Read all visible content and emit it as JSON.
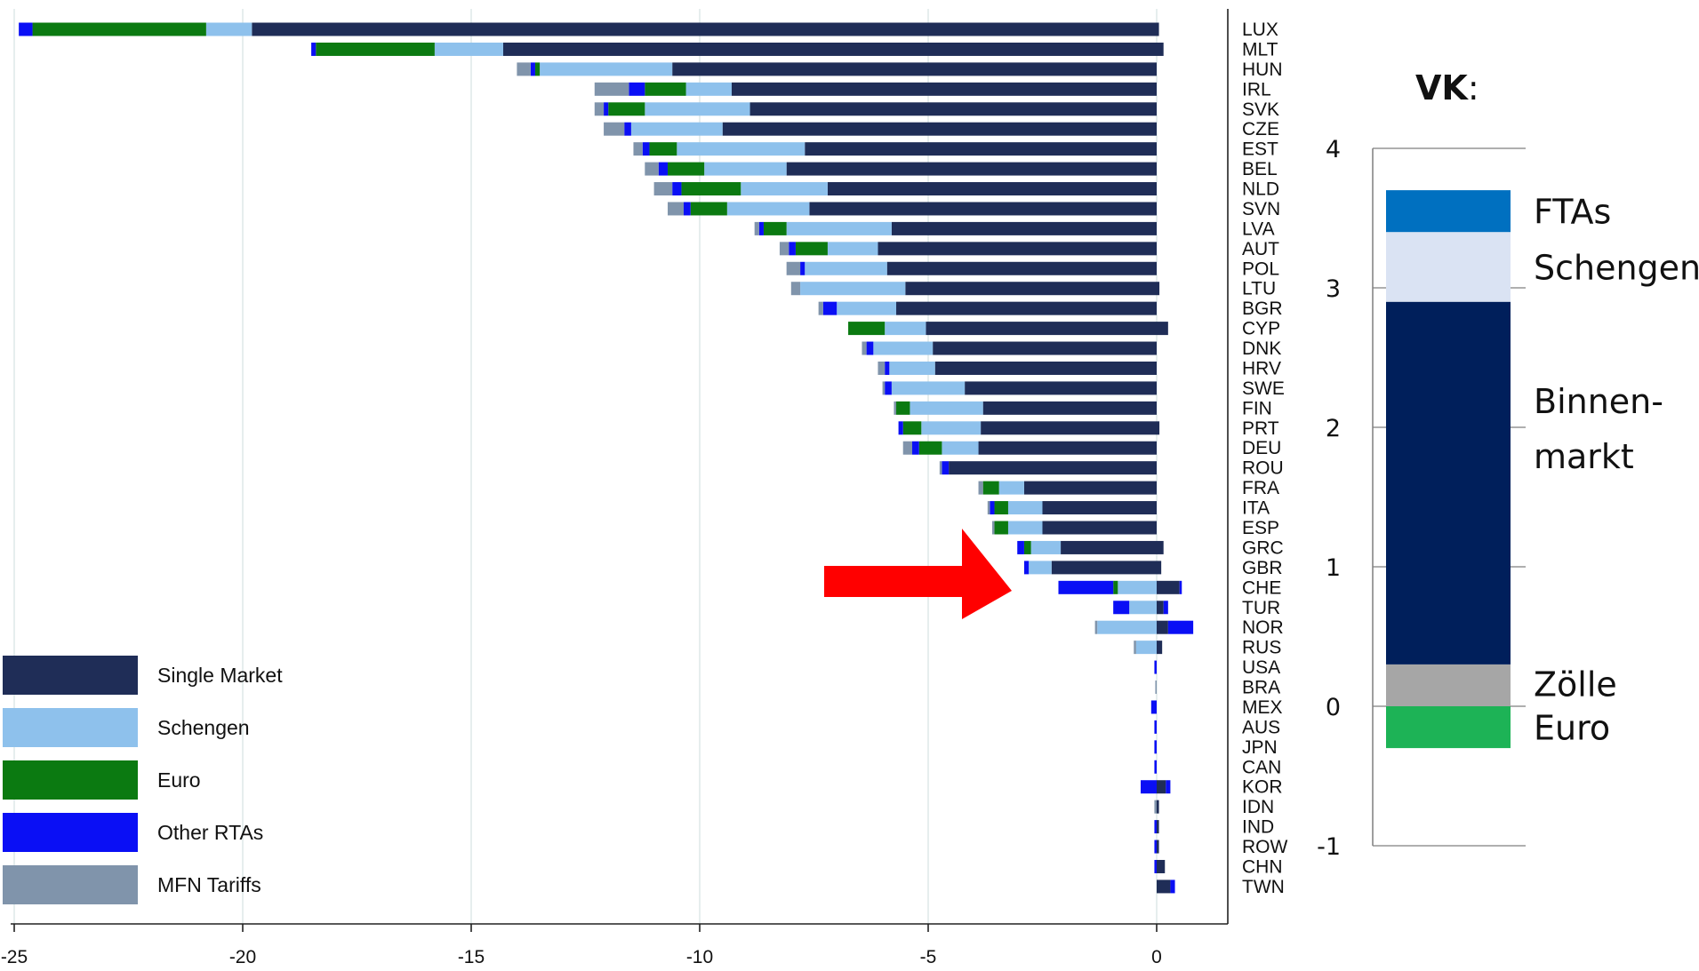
{
  "chart_data": [
    {
      "type": "bar",
      "orientation": "horizontal",
      "stacked": true,
      "xlim": [
        -25,
        0.8
      ],
      "xticks": [
        -25,
        -20,
        -15,
        -10,
        -5,
        0
      ],
      "grid": true,
      "legend_position": "bottom-left",
      "legend": [
        "Single Market",
        "Schengen",
        "Euro",
        "Other RTAs",
        "MFN Tariffs"
      ],
      "colors": {
        "Single Market": "#1f2d57",
        "Schengen": "#8ec1ec",
        "Euro": "#0b7a11",
        "Other RTAs": "#0a0ff5",
        "MFN Tariffs": "#8094ab"
      },
      "stack_order": [
        "Single Market",
        "Schengen",
        "Euro",
        "Other RTAs",
        "MFN Tariffs"
      ],
      "annotation": "red arrow pointing at GBR",
      "categories": [
        {
          "code": "LUX",
          "values": [
            -19.8,
            -1.0,
            -3.8,
            -0.3,
            0.0
          ],
          "pos": [
            0.05
          ]
        },
        {
          "code": "MLT",
          "values": [
            -14.3,
            -1.5,
            -2.6,
            -0.1,
            0.0
          ],
          "pos": [
            0.15
          ]
        },
        {
          "code": "HUN",
          "values": [
            -10.6,
            -2.9,
            -0.1,
            -0.1,
            -0.3
          ],
          "pos": []
        },
        {
          "code": "IRL",
          "values": [
            -9.3,
            -1.0,
            -0.9,
            -0.35,
            -0.75
          ],
          "pos": []
        },
        {
          "code": "SVK",
          "values": [
            -8.9,
            -2.3,
            -0.8,
            -0.1,
            -0.2
          ],
          "pos": []
        },
        {
          "code": "CZE",
          "values": [
            -9.5,
            -2.0,
            0.0,
            -0.15,
            -0.45
          ],
          "pos": []
        },
        {
          "code": "EST",
          "values": [
            -7.7,
            -2.8,
            -0.6,
            -0.15,
            -0.2
          ],
          "pos": []
        },
        {
          "code": "BEL",
          "values": [
            -8.1,
            -1.8,
            -0.8,
            -0.2,
            -0.3
          ],
          "pos": []
        },
        {
          "code": "NLD",
          "values": [
            -7.2,
            -1.9,
            -1.3,
            -0.2,
            -0.4
          ],
          "pos": []
        },
        {
          "code": "SVN",
          "values": [
            -7.6,
            -1.8,
            -0.8,
            -0.15,
            -0.35
          ],
          "pos": []
        },
        {
          "code": "LVA",
          "values": [
            -5.8,
            -2.3,
            -0.5,
            -0.1,
            -0.1
          ],
          "pos": []
        },
        {
          "code": "AUT",
          "values": [
            -6.1,
            -1.1,
            -0.7,
            -0.15,
            -0.2
          ],
          "pos": []
        },
        {
          "code": "POL",
          "values": [
            -5.9,
            -1.8,
            0.0,
            -0.1,
            -0.3
          ],
          "pos": []
        },
        {
          "code": "LTU",
          "values": [
            -5.5,
            -2.3,
            0.0,
            0.0,
            -0.2
          ],
          "pos": [
            0.06
          ]
        },
        {
          "code": "BGR",
          "values": [
            -5.7,
            -1.3,
            0.0,
            -0.3,
            -0.1
          ],
          "pos": []
        },
        {
          "code": "CYP",
          "values": [
            -5.05,
            -0.9,
            -0.8,
            0.0,
            0.0
          ],
          "pos": [
            0.25
          ]
        },
        {
          "code": "DNK",
          "values": [
            -4.9,
            -1.3,
            0.0,
            -0.15,
            -0.1
          ],
          "pos": []
        },
        {
          "code": "HRV",
          "values": [
            -4.85,
            -1.0,
            0.0,
            -0.1,
            -0.15
          ],
          "pos": []
        },
        {
          "code": "SWE",
          "values": [
            -4.2,
            -1.6,
            0.0,
            -0.15,
            -0.05
          ],
          "pos": []
        },
        {
          "code": "FIN",
          "values": [
            -3.8,
            -1.6,
            -0.3,
            0.0,
            -0.05
          ],
          "pos": []
        },
        {
          "code": "PRT",
          "values": [
            -3.85,
            -1.3,
            -0.4,
            -0.1,
            0.0
          ],
          "pos": [
            0.06
          ]
        },
        {
          "code": "DEU",
          "values": [
            -3.9,
            -0.8,
            -0.5,
            -0.15,
            -0.2
          ],
          "pos": []
        },
        {
          "code": "ROU",
          "values": [
            -4.55,
            0.0,
            0.0,
            -0.15,
            -0.05
          ],
          "pos": []
        },
        {
          "code": "FRA",
          "values": [
            -2.9,
            -0.55,
            -0.35,
            0.0,
            -0.1
          ],
          "pos": []
        },
        {
          "code": "ITA",
          "values": [
            -2.5,
            -0.75,
            -0.3,
            -0.1,
            -0.05
          ],
          "pos": []
        },
        {
          "code": "ESP",
          "values": [
            -2.5,
            -0.75,
            -0.3,
            0.0,
            -0.05
          ],
          "pos": []
        },
        {
          "code": "GRC",
          "values": [
            -2.1,
            -0.65,
            -0.15,
            -0.15,
            0.0
          ],
          "pos": [
            0.15
          ]
        },
        {
          "code": "GBR",
          "values": [
            -2.3,
            -0.5,
            0.0,
            -0.1,
            0.0
          ],
          "pos": [
            0.1
          ]
        },
        {
          "code": "CHE",
          "values": [
            0.0,
            -0.85,
            -0.1,
            -1.2,
            0.0
          ],
          "pos": [
            0.5,
            0.05
          ]
        },
        {
          "code": "TUR",
          "values": [
            0.0,
            -0.6,
            0.0,
            -0.35,
            0.0
          ],
          "pos": [
            0.15,
            0.1
          ]
        },
        {
          "code": "NOR",
          "values": [
            0.0,
            -1.3,
            0.0,
            0.0,
            -0.05
          ],
          "pos": [
            0.25,
            0.55
          ]
        },
        {
          "code": "RUS",
          "values": [
            0.0,
            -0.45,
            0.0,
            0.0,
            -0.05
          ],
          "pos": [
            0.12
          ]
        },
        {
          "code": "USA",
          "values": [
            0.0,
            0.0,
            0.0,
            -0.05,
            0.0
          ],
          "pos": []
        },
        {
          "code": "BRA",
          "values": [
            0.0,
            0.0,
            0.0,
            0.0,
            -0.03
          ],
          "pos": []
        },
        {
          "code": "MEX",
          "values": [
            0.0,
            0.0,
            0.0,
            -0.12,
            0.0
          ],
          "pos": []
        },
        {
          "code": "AUS",
          "values": [
            0.0,
            0.0,
            0.0,
            -0.05,
            0.0
          ],
          "pos": []
        },
        {
          "code": "JPN",
          "values": [
            0.0,
            0.0,
            0.0,
            -0.05,
            0.0
          ],
          "pos": []
        },
        {
          "code": "CAN",
          "values": [
            0.0,
            0.0,
            0.0,
            -0.05,
            0.0
          ],
          "pos": []
        },
        {
          "code": "KOR",
          "values": [
            0.0,
            0.0,
            0.0,
            -0.35,
            0.0
          ],
          "pos": [
            0.2,
            0.1
          ]
        },
        {
          "code": "IDN",
          "values": [
            0.0,
            0.0,
            0.0,
            0.0,
            -0.05
          ],
          "pos": [
            0.05
          ]
        },
        {
          "code": "IND",
          "values": [
            0.0,
            0.0,
            0.0,
            -0.05,
            0.0
          ],
          "pos": [
            0.05
          ]
        },
        {
          "code": "ROW",
          "values": [
            0.0,
            0.0,
            0.0,
            -0.05,
            0.0
          ],
          "pos": [
            0.05
          ]
        },
        {
          "code": "CHN",
          "values": [
            0.0,
            0.0,
            0.0,
            -0.05,
            0.0
          ],
          "pos": [
            0.18
          ]
        },
        {
          "code": "TWN",
          "values": [
            0.0,
            0.0,
            0.0,
            0.0,
            0.0
          ],
          "pos": [
            0.3,
            0.1
          ]
        }
      ]
    },
    {
      "type": "bar",
      "stacked": true,
      "title": "VK",
      "title_suffix": ":",
      "ylim": [
        -1,
        4
      ],
      "yticks": [
        4,
        3,
        2,
        1,
        0,
        -1
      ],
      "segments": [
        {
          "label": "Euro",
          "from": -0.3,
          "to": 0.0,
          "color": "#1db356"
        },
        {
          "label": "Zölle",
          "from": 0.0,
          "to": 0.3,
          "color": "#a6a6a6"
        },
        {
          "label": "Binnen-\nmarkt",
          "from": 0.3,
          "to": 2.9,
          "color": "#001f5b"
        },
        {
          "label": "Schengen",
          "from": 2.9,
          "to": 3.4,
          "color": "#dae3f3"
        },
        {
          "label": "FTAs",
          "from": 3.4,
          "to": 3.7,
          "color": "#0070c0"
        }
      ]
    }
  ]
}
